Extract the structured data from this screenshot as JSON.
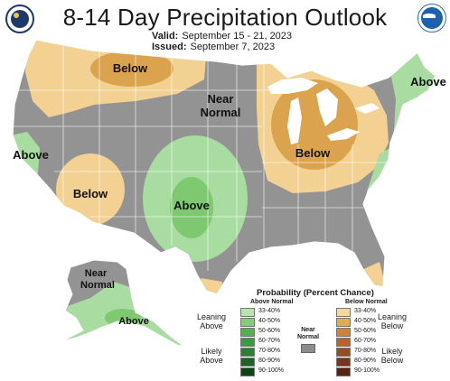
{
  "title": "8-14 Day Precipitation Outlook",
  "valid_label": "Valid:",
  "valid_value": "September 15 - 21, 2023",
  "issued_label": "Issued:",
  "issued_value": "September 7, 2023",
  "logos": {
    "left": "noaa-cpc-seal-icon",
    "right": "noaa-logo-icon"
  },
  "colors": {
    "near_normal": "#939393",
    "below_33_40": "#f2d193",
    "below_40_50": "#dba34e",
    "above_33_40": "#a8dca0",
    "above_40_50": "#7ec96f",
    "land_outline": "#ffffff",
    "water": "#ffffff"
  },
  "map_labels": {
    "below_nw": "Below",
    "near_normal_1": "Near",
    "near_normal_2": "Normal",
    "above_ne": "Above",
    "above_w": "Above",
    "below_sw": "Below",
    "below_gl": "Below",
    "above_central": "Above",
    "ak_near_1": "Near",
    "ak_near_2": "Normal",
    "ak_above": "Above"
  },
  "legend": {
    "title": "Probability (Percent Chance)",
    "above_header": "Above Normal",
    "below_header": "Below Normal",
    "near_1": "Near",
    "near_2": "Normal",
    "leaning_above_1": "Leaning",
    "leaning_above_2": "Above",
    "likely_above_1": "Likely",
    "likely_above_2": "Above",
    "leaning_below_1": "Leaning",
    "leaning_below_2": "Below",
    "likely_below_1": "Likely",
    "likely_below_2": "Below",
    "above": [
      {
        "range": "33-40%",
        "color": "#b6e3ae"
      },
      {
        "range": "40-50%",
        "color": "#86cc78"
      },
      {
        "range": "50-60%",
        "color": "#55b04a"
      },
      {
        "range": "60-70%",
        "color": "#3b9a3f"
      },
      {
        "range": "70-80%",
        "color": "#2a7f30"
      },
      {
        "range": "80-90%",
        "color": "#1c6423"
      },
      {
        "range": "90-100%",
        "color": "#0e4517"
      }
    ],
    "below": [
      {
        "range": "33-40%",
        "color": "#f5d79b"
      },
      {
        "range": "40-50%",
        "color": "#e0ab55"
      },
      {
        "range": "50-60%",
        "color": "#cc8339"
      },
      {
        "range": "60-70%",
        "color": "#b5652b"
      },
      {
        "range": "70-80%",
        "color": "#9a4b22"
      },
      {
        "range": "80-90%",
        "color": "#7a3419"
      },
      {
        "range": "90-100%",
        "color": "#5a2210"
      }
    ]
  }
}
